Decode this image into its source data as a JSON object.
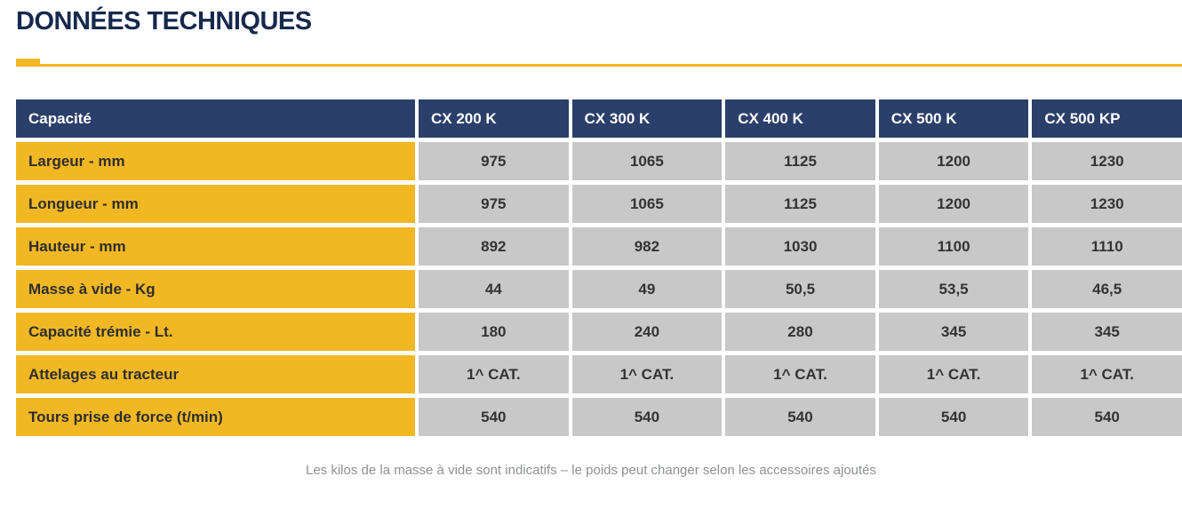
{
  "title": "DONNÉES TECHNIQUES",
  "footnote": "Les kilos de la masse à vide sont indicatifs – le poids peut changer selon les accessoires ajoutés",
  "colors": {
    "title-navy": "#16294d",
    "navy": "#2b3f6b",
    "yellow": "#f2b824",
    "gray-cell": "#c8c8c8",
    "label-text": "#2e2e2c",
    "value-text": "#333333",
    "footnote-gray": "#8e9093"
  },
  "chart_data": {
    "type": "table",
    "header": [
      "Capacité",
      "CX 200 K",
      "CX 300 K",
      "CX 400 K",
      "CX 500 K",
      "CX 500 KP"
    ],
    "rows": [
      {
        "label": "Largeur - mm",
        "values": [
          "975",
          "1065",
          "1125",
          "1200",
          "1230"
        ]
      },
      {
        "label": "Longueur - mm",
        "values": [
          "975",
          "1065",
          "1125",
          "1200",
          "1230"
        ]
      },
      {
        "label": "Hauteur - mm",
        "values": [
          "892",
          "982",
          "1030",
          "1100",
          "1110"
        ]
      },
      {
        "label": "Masse à vide - Kg",
        "values": [
          "44",
          "49",
          "50,5",
          "53,5",
          "46,5"
        ]
      },
      {
        "label": "Capacité trémie - Lt.",
        "values": [
          "180",
          "240",
          "280",
          "345",
          "345"
        ]
      },
      {
        "label": "Attelages au tracteur",
        "values": [
          "1^ CAT.",
          "1^ CAT.",
          "1^ CAT.",
          "1^ CAT.",
          "1^ CAT."
        ]
      },
      {
        "label": "Tours prise de force (t/min)",
        "values": [
          "540",
          "540",
          "540",
          "540",
          "540"
        ]
      }
    ]
  }
}
